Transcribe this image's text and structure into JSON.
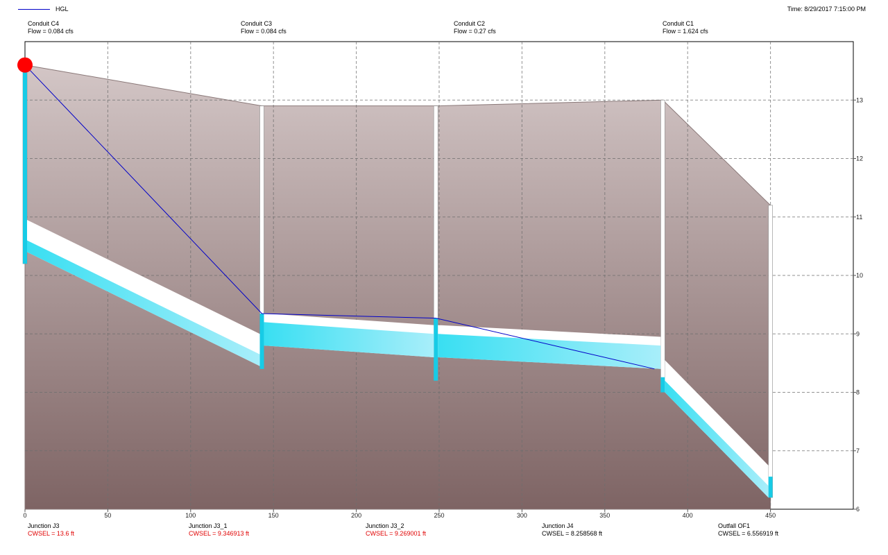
{
  "legend": {
    "label": "HGL",
    "color": "#0000c8"
  },
  "time_label": "Time: 8/29/2017 7:15:00 PM",
  "conduits": [
    {
      "name": "Conduit C4",
      "flow": "Flow = 0.084 cfs"
    },
    {
      "name": "Conduit C3",
      "flow": "Flow = 0.084 cfs"
    },
    {
      "name": "Conduit C2",
      "flow": "Flow = 0.27 cfs"
    },
    {
      "name": "Conduit C1",
      "flow": "Flow = 1.624 cfs"
    }
  ],
  "junctions": [
    {
      "name": "Junction J3",
      "cwsel": "CWSEL = 13.6 ft",
      "highlight": true
    },
    {
      "name": "Junction J3_1",
      "cwsel": "CWSEL = 9.346913 ft",
      "highlight": true
    },
    {
      "name": "Junction J3_2",
      "cwsel": "CWSEL = 9.269001 ft",
      "highlight": true
    },
    {
      "name": "Junction J4",
      "cwsel": "CWSEL = 8.258568 ft",
      "highlight": false
    },
    {
      "name": "Outfall OF1",
      "cwsel": "CWSEL = 6.556919 ft",
      "highlight": false
    }
  ],
  "chart_data": {
    "type": "area",
    "xlim": [
      0,
      500
    ],
    "ylim": [
      6,
      14
    ],
    "x_ticks": [
      0,
      50,
      100,
      150,
      200,
      250,
      300,
      350,
      400,
      450
    ],
    "y_ticks": [
      6,
      7,
      8,
      9,
      10,
      11,
      12,
      13
    ],
    "grid": true,
    "legend_position": "top-left",
    "colors": {
      "ground_top": "#d3c6c6",
      "ground_bottom": "#7e6464",
      "water": "#17cbe6",
      "water_light": "#a8eefa",
      "hgl": "#0000c8",
      "marker": "#ff0000"
    },
    "nodes": [
      {
        "name": "J3",
        "x": 0,
        "invert": 10.2,
        "ground": 13.6,
        "hgl": 13.6
      },
      {
        "name": "J3_1",
        "x": 143,
        "invert": 8.4,
        "ground": 12.9,
        "hgl": 9.346913
      },
      {
        "name": "J3_2",
        "x": 248,
        "invert": 8.2,
        "ground": 12.9,
        "hgl": 9.269001
      },
      {
        "name": "J4",
        "x": 385,
        "invert": 8.0,
        "ground": 13.0,
        "hgl": 8.258568
      },
      {
        "name": "OF1",
        "x": 450,
        "invert": 6.2,
        "ground": 11.2,
        "hgl": 6.556919
      }
    ],
    "conduits": [
      {
        "name": "C4",
        "from": 0,
        "to": 1,
        "inlet": 10.4,
        "outlet": 8.45,
        "depth": 0.2
      },
      {
        "name": "C3",
        "from": 1,
        "to": 2,
        "inlet": 8.8,
        "outlet": 8.6,
        "depth": 0.4
      },
      {
        "name": "C2",
        "from": 2,
        "to": 3,
        "inlet": 8.6,
        "outlet": 8.4,
        "depth": 0.4
      },
      {
        "name": "C1",
        "from": 3,
        "to": 4,
        "inlet": 8.0,
        "outlet": 6.2,
        "depth": 0.2
      }
    ],
    "hgl": [
      {
        "x": 0,
        "y": 13.6
      },
      {
        "x": 143,
        "y": 9.346913
      },
      {
        "x": 248,
        "y": 9.269001
      },
      {
        "x": 380,
        "y": 8.4
      }
    ]
  }
}
